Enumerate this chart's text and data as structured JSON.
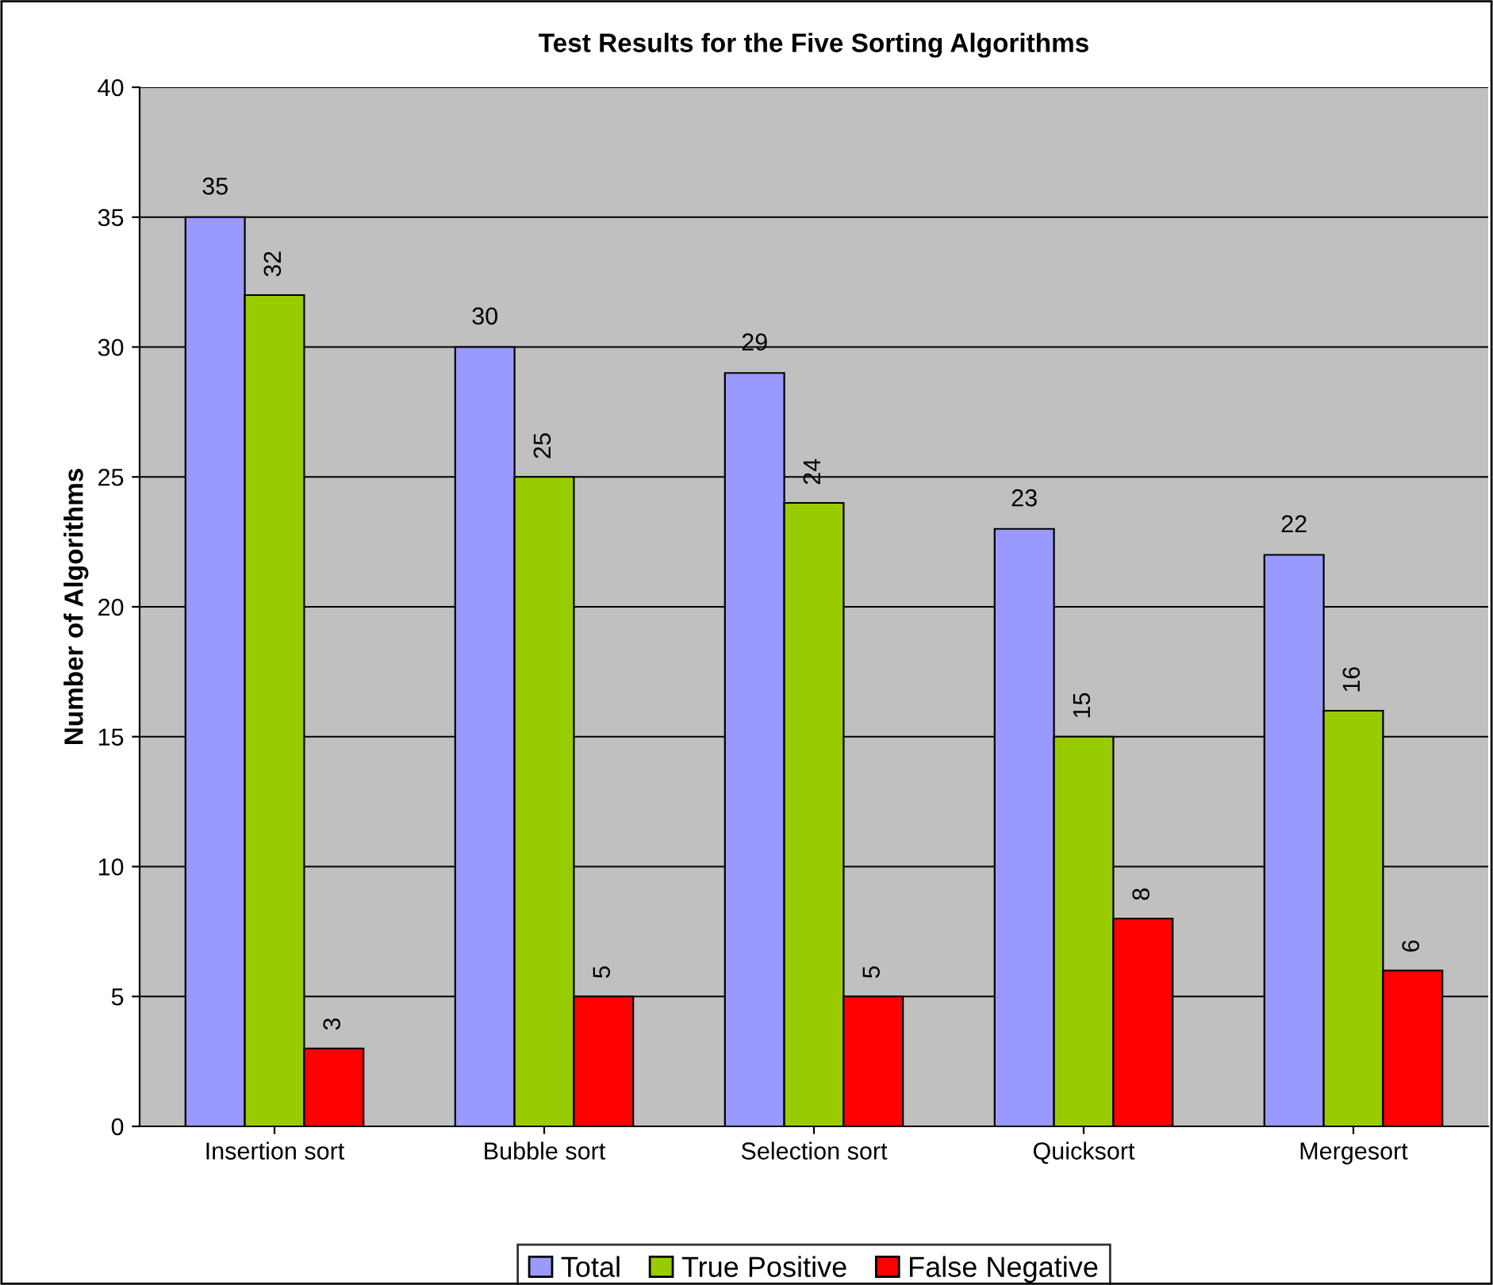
{
  "chart_data": {
    "type": "bar",
    "title": "Test Results for the Five Sorting Algorithms",
    "ylabel": "Number of Algorithms",
    "categories": [
      "Insertion sort",
      "Bubble sort",
      "Selection sort",
      "Quicksort",
      "Mergesort"
    ],
    "series": [
      {
        "name": "Total",
        "color": "#9999ff",
        "values": [
          35,
          30,
          29,
          23,
          22
        ]
      },
      {
        "name": "True Positive",
        "color": "#99cc00",
        "values": [
          32,
          25,
          24,
          15,
          16
        ]
      },
      {
        "name": "False Negative",
        "color": "#ff0000",
        "values": [
          3,
          5,
          5,
          8,
          6
        ]
      }
    ],
    "ylim": [
      0,
      40
    ],
    "yticks": [
      0,
      5,
      10,
      15,
      20,
      25,
      30,
      35,
      40
    ],
    "grid": "y",
    "legend": "bottom",
    "data_labels": true
  }
}
